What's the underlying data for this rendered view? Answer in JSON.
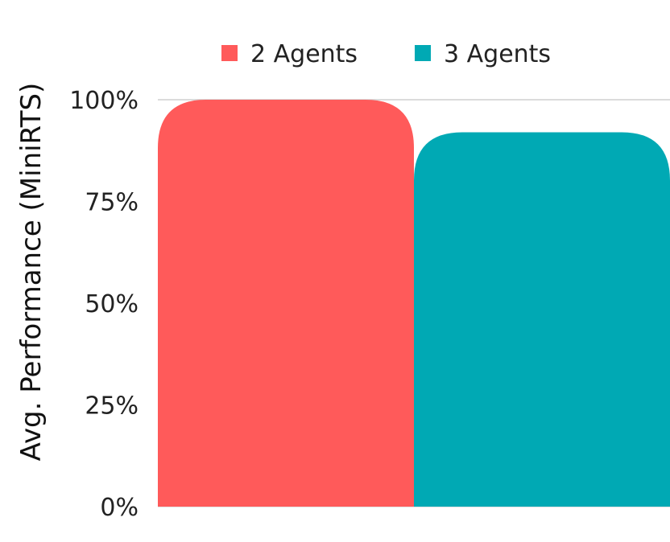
{
  "chart_data": {
    "type": "bar",
    "ylabel": "Avg. Performance (MiniRTS)",
    "xlabel": "",
    "ylim": [
      0,
      100
    ],
    "yticks": [
      {
        "value": 0,
        "label": "0%"
      },
      {
        "value": 25,
        "label": "25%"
      },
      {
        "value": 50,
        "label": "50%"
      },
      {
        "value": 75,
        "label": "75%"
      },
      {
        "value": 100,
        "label": "100%"
      }
    ],
    "grid": "top line only",
    "legend": "top",
    "series": [
      {
        "name": "2 Agents",
        "value": 100,
        "color": "#FF5A5A"
      },
      {
        "name": "3 Agents",
        "value": 92,
        "color": "#00A9B4"
      }
    ]
  }
}
